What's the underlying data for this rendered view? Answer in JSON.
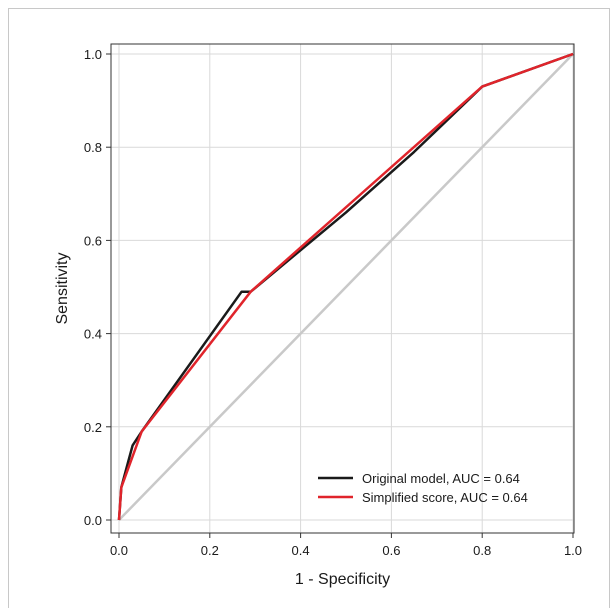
{
  "chart_data": {
    "type": "line",
    "xlabel": "1 - Specificity",
    "ylabel": "Sensitivity",
    "xlim": [
      0,
      1
    ],
    "ylim": [
      0,
      1
    ],
    "grid": true,
    "legend_position": "bottom-right",
    "x_ticks": [
      "0.0",
      "0.2",
      "0.4",
      "0.6",
      "0.8",
      "1.0"
    ],
    "y_ticks": [
      "0.0",
      "0.2",
      "0.4",
      "0.6",
      "0.8",
      "1.0"
    ],
    "reference_line": {
      "x": [
        0,
        1
      ],
      "y": [
        0,
        1
      ],
      "color": "#c9c9c9"
    },
    "series": [
      {
        "name": "Original model, AUC = 0.64",
        "color": "#1a1a1a",
        "x": [
          0.0,
          0.005,
          0.03,
          0.05,
          0.27,
          0.29,
          0.5,
          0.65,
          0.8,
          1.0
        ],
        "y": [
          0.0,
          0.07,
          0.16,
          0.19,
          0.49,
          0.49,
          0.66,
          0.79,
          0.93,
          1.0
        ]
      },
      {
        "name": "Simplified score, AUC = 0.64",
        "color": "#e0242b",
        "x": [
          0.0,
          0.005,
          0.05,
          0.29,
          0.8,
          1.0
        ],
        "y": [
          0.0,
          0.07,
          0.19,
          0.49,
          0.93,
          1.0
        ]
      }
    ]
  }
}
